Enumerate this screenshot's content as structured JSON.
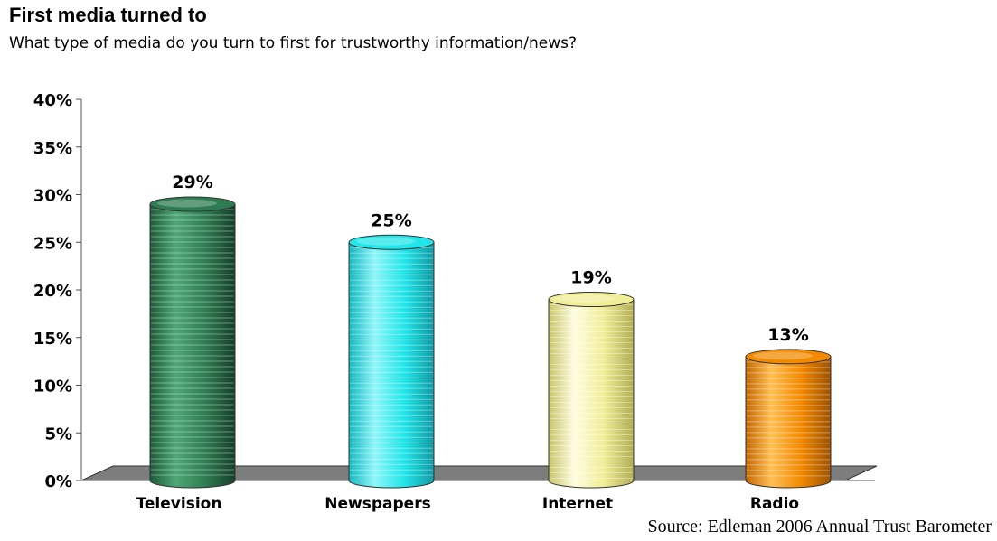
{
  "header": {
    "title": "First media turned to",
    "subtitle": "What type of media do you turn to first for trustworthy information/news?"
  },
  "source": "Source:  Edleman 2006 Annual Trust Barometer",
  "chart_data": {
    "type": "bar",
    "style": "3d-cylinder",
    "title": "First media turned to",
    "subtitle": "What type of media do you turn to first for trustworthy information/news?",
    "categories": [
      "Television",
      "Newspapers",
      "Internet",
      "Radio"
    ],
    "values": [
      29,
      25,
      19,
      13
    ],
    "data_labels": [
      "29%",
      "25%",
      "19%",
      "13%"
    ],
    "colors": [
      "#2e7d52",
      "#22e6ea",
      "#f0ee96",
      "#f28a00"
    ],
    "ylim": [
      0,
      40
    ],
    "yticks": [
      0,
      5,
      10,
      15,
      20,
      25,
      30,
      35,
      40
    ],
    "ytick_labels": [
      "0%",
      "5%",
      "10%",
      "15%",
      "20%",
      "25%",
      "30%",
      "35%",
      "40%"
    ],
    "xlabel": "",
    "ylabel": "",
    "grid": false,
    "legend": "none"
  }
}
